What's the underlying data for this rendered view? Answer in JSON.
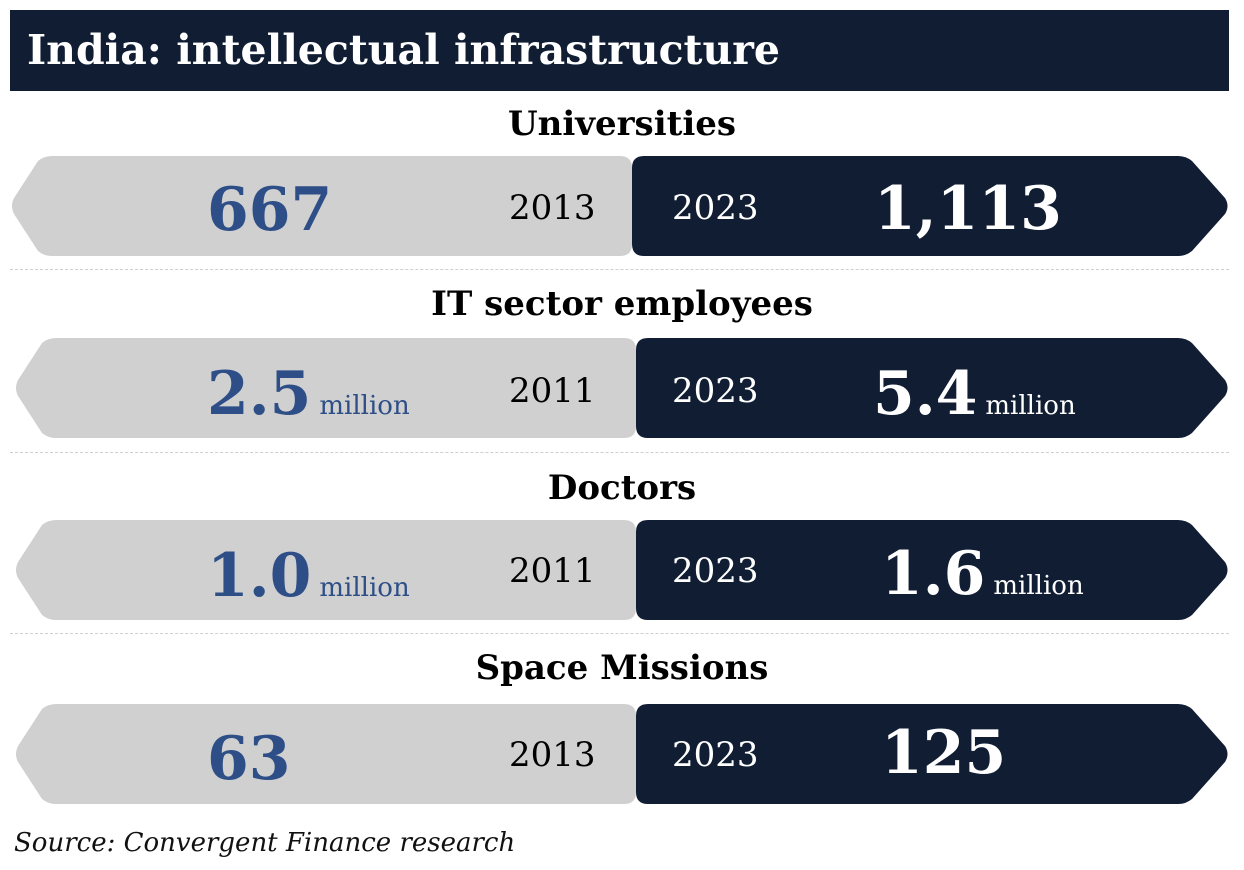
{
  "title": "India: intellectual infrastructure",
  "source": "Source: Convergent Finance research",
  "colors": {
    "navy": "#101d33",
    "grey": "#d0d0d0",
    "blue_value": "#2d4e87"
  },
  "chart_data": {
    "type": "table",
    "title": "India: intellectual infrastructure",
    "metrics": [
      {
        "label": "Universities",
        "old_year": "2013",
        "old_value_text": "667",
        "old_unit": "",
        "new_year": "2023",
        "new_value_text": "1,113",
        "new_unit": "",
        "old_value": 667,
        "new_value": 1113
      },
      {
        "label": "IT sector employees",
        "old_year": "2011",
        "old_value_text": "2.5",
        "old_unit": "million",
        "new_year": "2023",
        "new_value_text": "5.4",
        "new_unit": "million",
        "old_value": 2.5,
        "new_value": 5.4
      },
      {
        "label": "Doctors",
        "old_year": "2011",
        "old_value_text": "1.0",
        "old_unit": "million",
        "new_year": "2023",
        "new_value_text": "1.6",
        "new_unit": "million",
        "old_value": 1.0,
        "new_value": 1.6
      },
      {
        "label": "Space Missions",
        "old_year": "2013",
        "old_value_text": "63",
        "old_unit": "",
        "new_year": "2023",
        "new_value_text": "125",
        "new_unit": "",
        "old_value": 63,
        "new_value": 125
      }
    ]
  }
}
